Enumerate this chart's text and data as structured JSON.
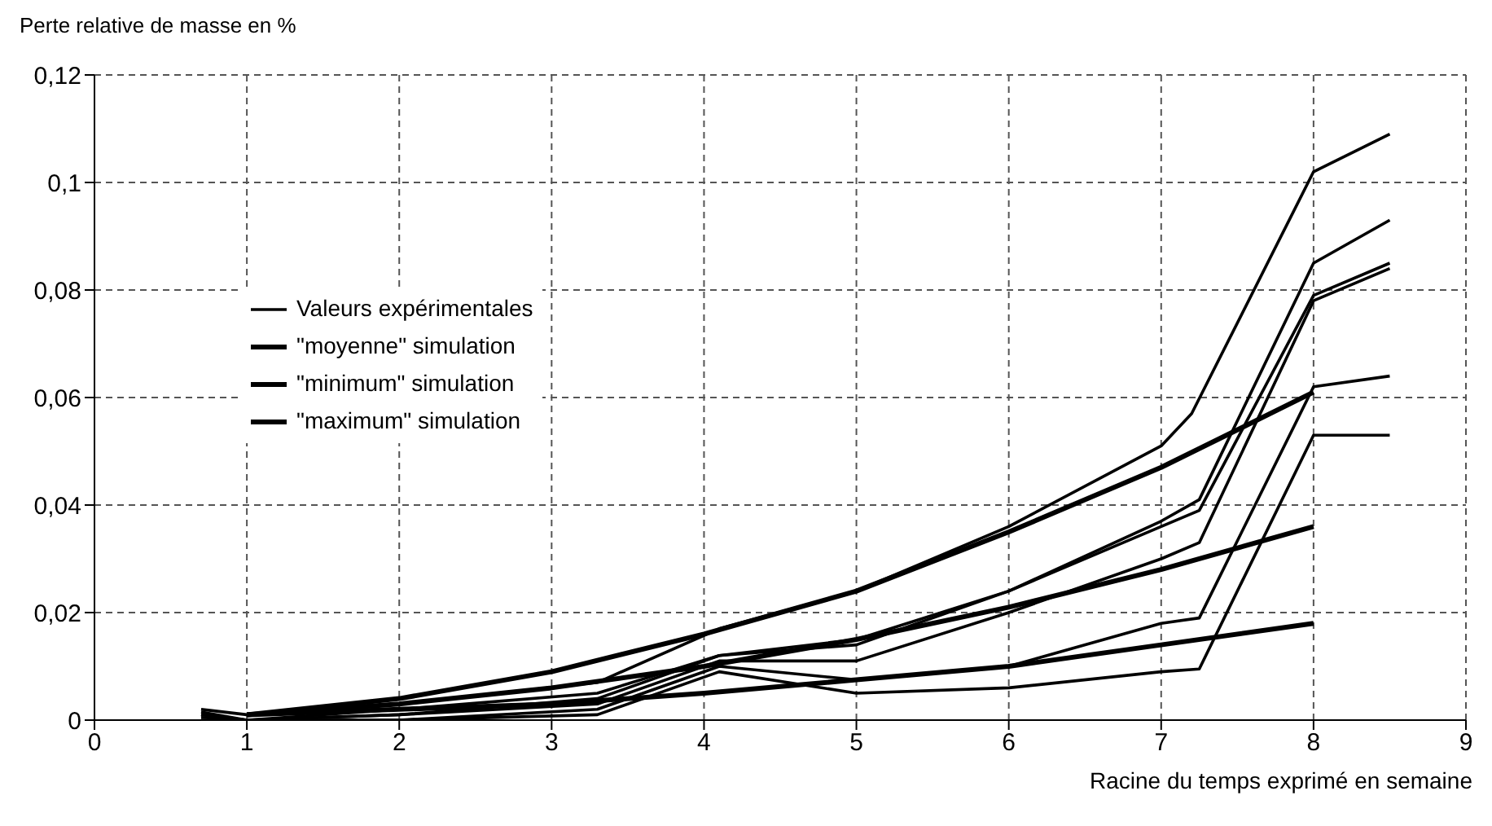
{
  "chart_data": {
    "type": "line",
    "ylabel": "Perte relative de masse en %",
    "xlabel": "Racine du temps exprimé en semaine",
    "xlim": [
      0,
      9
    ],
    "xticks": [
      0,
      1,
      2,
      3,
      4,
      5,
      6,
      7,
      8,
      9
    ],
    "ylim": [
      0,
      0.12
    ],
    "yticks": [
      {
        "value": 0,
        "label": "0"
      },
      {
        "value": 0.02,
        "label": "0,02"
      },
      {
        "value": 0.04,
        "label": "0,04"
      },
      {
        "value": 0.06,
        "label": "0,06"
      },
      {
        "value": 0.08,
        "label": "0,08"
      },
      {
        "value": 0.1,
        "label": "0,1"
      },
      {
        "value": 0.12,
        "label": "0,12"
      }
    ],
    "grid": true,
    "legend": "left",
    "line_style": "solid",
    "marker": "none",
    "series": [
      {
        "name": "Valeurs expérimentales",
        "color": "#000000",
        "x": [
          0.7,
          1,
          2,
          3.3,
          4.1,
          5,
          6,
          7,
          7.2,
          8,
          8.5
        ],
        "values": [
          0.002,
          0.001,
          0.003,
          0.007,
          0.017,
          0.024,
          0.036,
          0.051,
          0.057,
          0.102,
          0.109
        ]
      },
      {
        "color": "#000000",
        "x": [
          0.7,
          1,
          2,
          3.3,
          4.1,
          5,
          6,
          7,
          7.25,
          8,
          8.5
        ],
        "values": [
          0.001,
          0,
          0.002,
          0.005,
          0.012,
          0.015,
          0.024,
          0.037,
          0.041,
          0.085,
          0.093
        ]
      },
      {
        "color": "#000000",
        "x": [
          0.7,
          1,
          2,
          3.3,
          4.1,
          5,
          6,
          7,
          7.25,
          8,
          8.5
        ],
        "values": [
          0.0015,
          0,
          0.001,
          0.004,
          0.012,
          0.014,
          0.024,
          0.036,
          0.039,
          0.079,
          0.085
        ]
      },
      {
        "color": "#000000",
        "x": [
          0.7,
          1,
          2,
          3.3,
          4.1,
          5,
          6,
          7,
          7.25,
          8,
          8.5
        ],
        "values": [
          0.001,
          0,
          0.001,
          0.003,
          0.011,
          0.011,
          0.02,
          0.03,
          0.033,
          0.078,
          0.084
        ]
      },
      {
        "color": "#000000",
        "x": [
          0.7,
          1,
          2,
          3.3,
          4.1,
          5,
          6,
          7,
          7.25,
          8,
          8.5
        ],
        "values": [
          0,
          0,
          0,
          0.002,
          0.01,
          0.0075,
          0.01,
          0.018,
          0.019,
          0.062,
          0.064
        ]
      },
      {
        "color": "#000000",
        "x": [
          0.7,
          1,
          2,
          3.3,
          4.1,
          5,
          6,
          7,
          7.25,
          8,
          8.5
        ],
        "values": [
          0.0005,
          0,
          0,
          0.001,
          0.009,
          0.005,
          0.006,
          0.009,
          0.0095,
          0.053,
          0.053
        ]
      },
      {
        "name": "\"moyenne\" simulation",
        "color": "#000000",
        "x": [
          1,
          2,
          3,
          4,
          5,
          6,
          7,
          8
        ],
        "values": [
          0.001,
          0.003,
          0.006,
          0.01,
          0.015,
          0.021,
          0.028,
          0.036
        ]
      },
      {
        "name": "\"minimum\" simulation",
        "color": "#000000",
        "x": [
          1,
          2,
          3,
          4,
          5,
          6,
          7,
          8
        ],
        "values": [
          0.001,
          0.002,
          0.003,
          0.005,
          0.0075,
          0.01,
          0.014,
          0.018
        ]
      },
      {
        "name": "\"maximum\" simulation",
        "color": "#000000",
        "x": [
          1,
          2,
          3,
          4,
          5,
          6,
          7,
          8
        ],
        "values": [
          0.001,
          0.004,
          0.009,
          0.016,
          0.024,
          0.035,
          0.047,
          0.061
        ]
      }
    ]
  }
}
